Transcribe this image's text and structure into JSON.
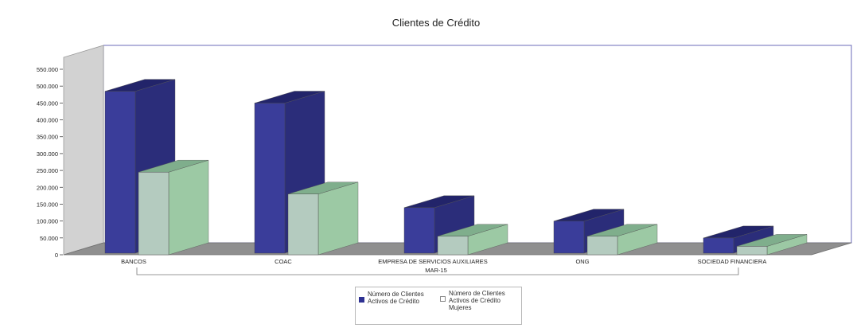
{
  "chart_data": {
    "type": "bar",
    "title": "Clientes de Crédito",
    "categories": [
      "BANCOS",
      "COAC",
      "EMPRESA DE SERVICIOS AUXILIARES",
      "ONG",
      "SOCIEDAD FINANCIERA"
    ],
    "group_label": "MAR-15",
    "series": [
      {
        "name": "Número de Clientes Activos de Crédito",
        "values": [
          480000,
          445000,
          135000,
          95000,
          45000
        ]
      },
      {
        "name": "Número de Clientes Activos de Crédito Mujeres",
        "values": [
          245000,
          180000,
          55000,
          55000,
          25000
        ]
      }
    ],
    "y_ticks": [
      "550.000",
      "500.000",
      "450.000",
      "400.000",
      "350.000",
      "300.000",
      "250.000",
      "200.000",
      "150.000",
      "100.000",
      "50.000",
      "0"
    ],
    "ylim": [
      0,
      550000
    ],
    "colors": {
      "series1_front": "#3a3d9a",
      "series1_side": "#2b2d7a",
      "series1_top": "#22246a",
      "series2_front": "#b4cbbf",
      "series2_side": "#9cc9a4",
      "series2_top": "#7fae8c",
      "floor": "#8f8f8f",
      "back_wall": "#ffffff",
      "left_wall": "#d2d2d2"
    },
    "legend_position": "bottom",
    "grid": false
  },
  "legend": {
    "item1": "Número de Clientes\nActivos de Crédito",
    "item2": "Número de Clientes\nActivos de Crédito\nMujeres"
  }
}
